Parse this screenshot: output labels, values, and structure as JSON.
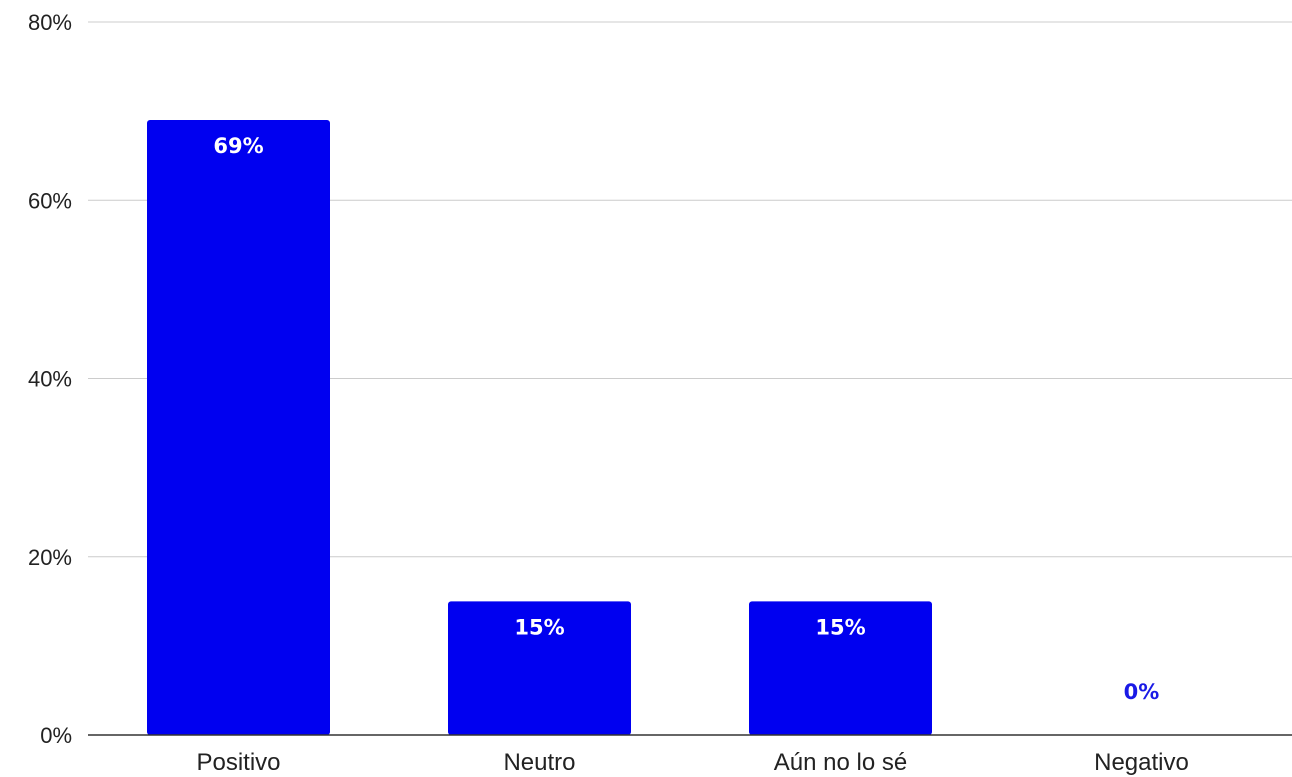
{
  "chart_data": {
    "type": "bar",
    "title": "",
    "xlabel": "",
    "ylabel": "",
    "categories": [
      "Positivo",
      "Neutro",
      "Aún no lo sé",
      "Negativo"
    ],
    "values": [
      69,
      15,
      15,
      0
    ],
    "data_labels": [
      "69%",
      "15%",
      "15%",
      "0%"
    ],
    "ylim": [
      0,
      80
    ],
    "yticks": [
      0,
      20,
      40,
      60,
      80
    ],
    "ytick_labels": [
      "0%",
      "20%",
      "40%",
      "60%",
      "80%"
    ],
    "grid": true,
    "legend": "none",
    "bar_color": "#0000f0",
    "label_inside_color": "#ffffff",
    "label_outside_color": "#1a1ae6"
  }
}
